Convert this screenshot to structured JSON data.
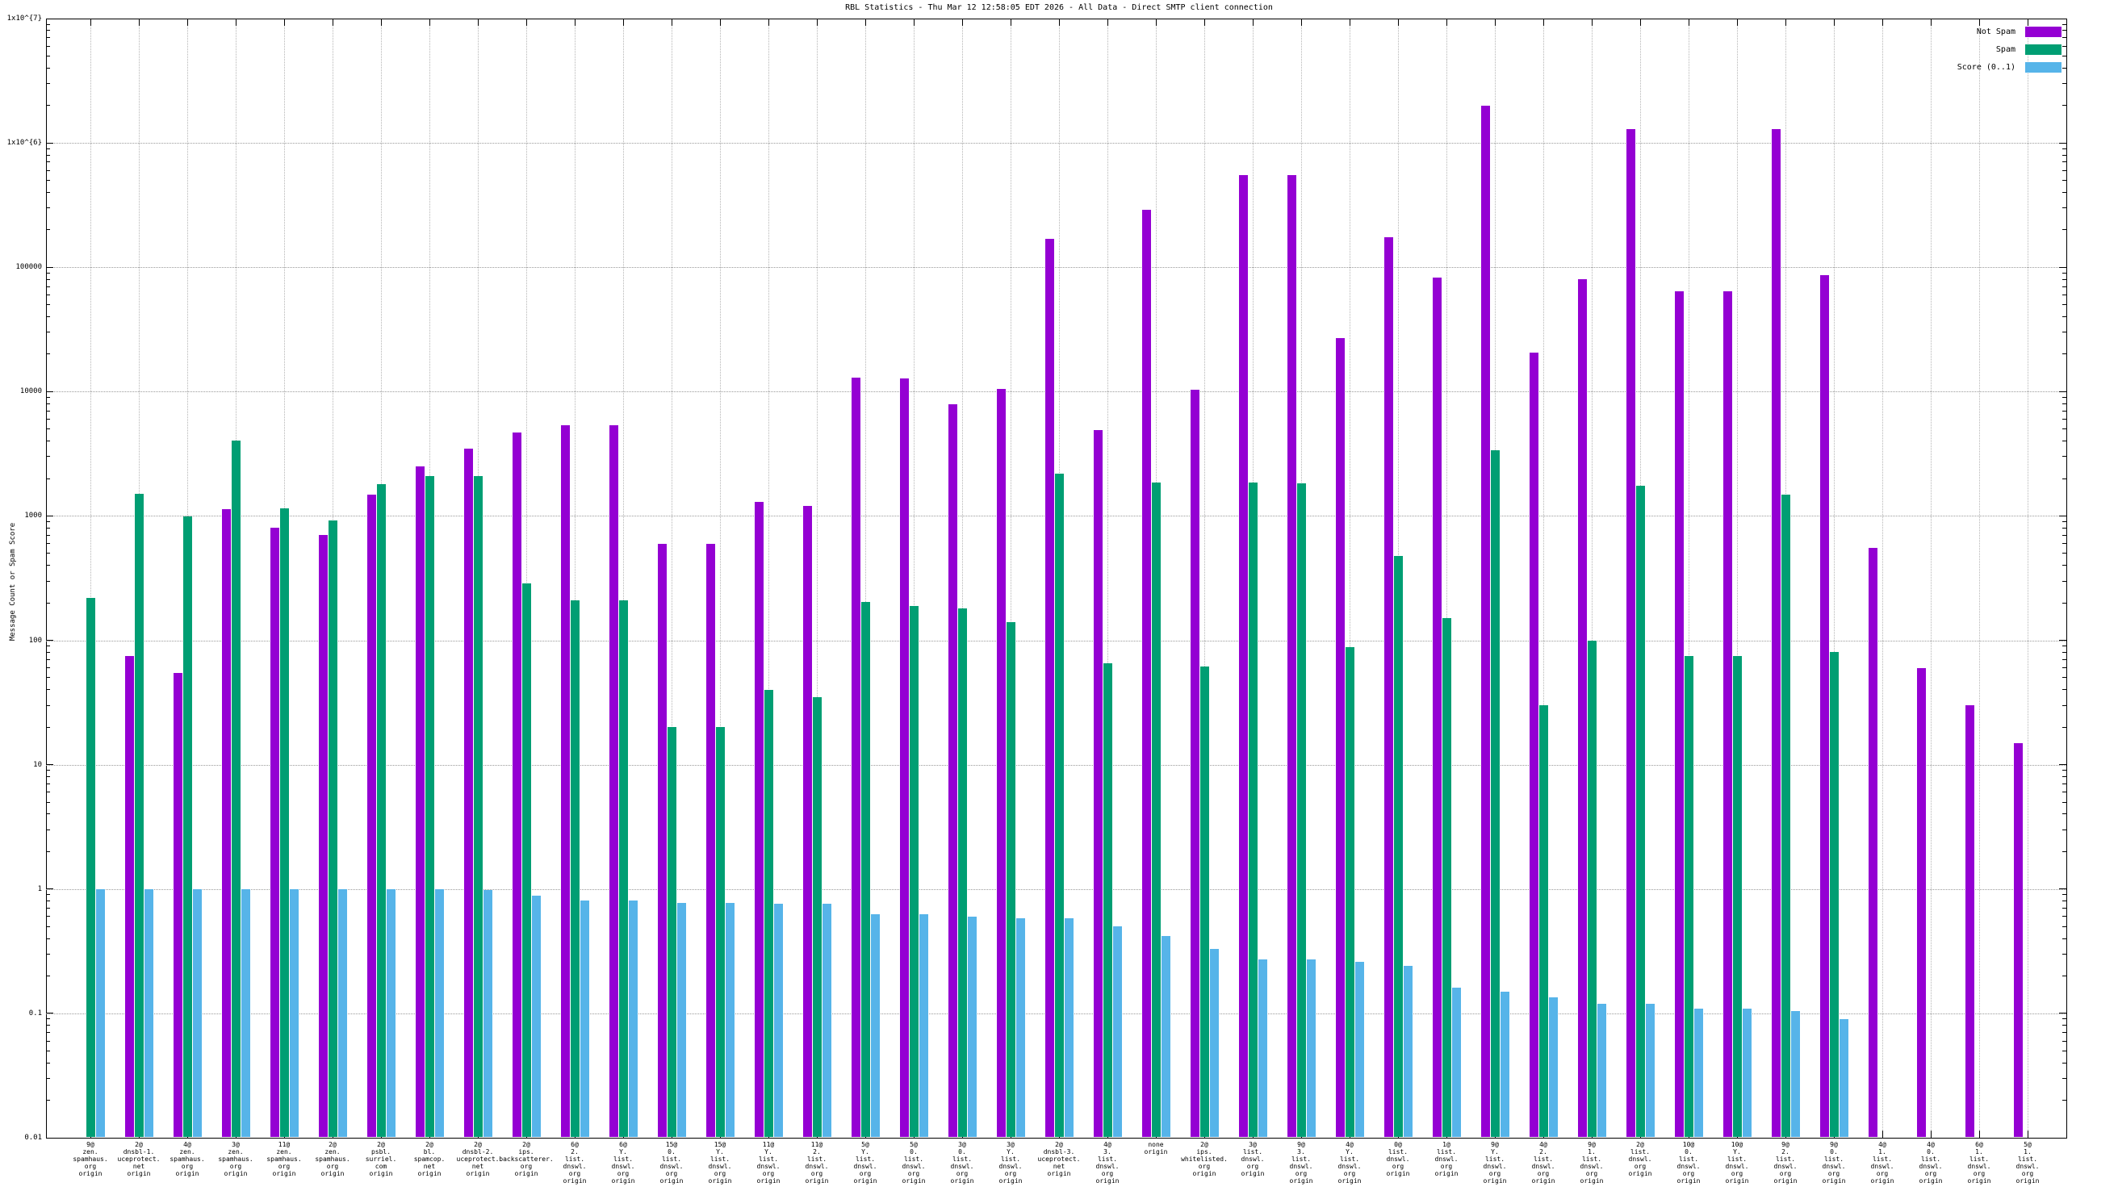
{
  "title": "RBL Statistics - Thu Mar 12 12:58:05 EDT 2026 - All Data - Direct SMTP client connection",
  "ylabel": "Message Count or Spam Score",
  "legend": {
    "position": "top-right-inside",
    "items": [
      {
        "label": "Not Spam",
        "color": "#9400d3"
      },
      {
        "label": "Spam",
        "color": "#009e73"
      },
      {
        "label": "Score (0..1)",
        "color": "#56b4e9"
      }
    ]
  },
  "chart_data": {
    "type": "bar",
    "y_scale": "log",
    "ylim": [
      0.01,
      10000000
    ],
    "grid": true,
    "y_ticks": [
      {
        "label": "1x10^{7}",
        "value": 10000000
      },
      {
        "label": "1x10^{6}",
        "value": 1000000
      },
      {
        "label": "100000",
        "value": 100000
      },
      {
        "label": "10000",
        "value": 10000
      },
      {
        "label": "1000",
        "value": 1000
      },
      {
        "label": "100",
        "value": 100
      },
      {
        "label": "10",
        "value": 10
      },
      {
        "label": "1",
        "value": 1
      },
      {
        "label": "0.1",
        "value": 0.1
      },
      {
        "label": "0.01",
        "value": 0.01
      }
    ],
    "categories": [
      [
        "9@",
        "zen.",
        "spamhaus.",
        "org",
        "origin"
      ],
      [
        "2@",
        "dnsbl-1.",
        "uceprotect.",
        "net",
        "origin"
      ],
      [
        "4@",
        "zen.",
        "spamhaus.",
        "org",
        "origin"
      ],
      [
        "3@",
        "zen.",
        "spamhaus.",
        "org",
        "origin"
      ],
      [
        "11@",
        "zen.",
        "spamhaus.",
        "org",
        "origin"
      ],
      [
        "2@",
        "zen.",
        "spamhaus.",
        "org",
        "origin"
      ],
      [
        "2@",
        "psbl.",
        "surriel.",
        "com",
        "origin"
      ],
      [
        "2@",
        "bl.",
        "spamcop.",
        "net",
        "origin"
      ],
      [
        "2@",
        "dnsbl-2.",
        "uceprotect.",
        "net",
        "origin"
      ],
      [
        "2@",
        "ips.",
        "backscatterer.",
        "org",
        "origin"
      ],
      [
        "6@",
        "2.",
        "list.",
        "dnswl.",
        "org",
        "origin"
      ],
      [
        "6@",
        "Y.",
        "list.",
        "dnswl.",
        "org",
        "origin"
      ],
      [
        "15@",
        "0.",
        "list.",
        "dnswl.",
        "org",
        "origin"
      ],
      [
        "15@",
        "Y.",
        "list.",
        "dnswl.",
        "org",
        "origin"
      ],
      [
        "11@",
        "Y.",
        "list.",
        "dnswl.",
        "org",
        "origin"
      ],
      [
        "11@",
        "2.",
        "list.",
        "dnswl.",
        "org",
        "origin"
      ],
      [
        "5@",
        "Y.",
        "list.",
        "dnswl.",
        "org",
        "origin"
      ],
      [
        "5@",
        "0.",
        "list.",
        "dnswl.",
        "org",
        "origin"
      ],
      [
        "3@",
        "0.",
        "list.",
        "dnswl.",
        "org",
        "origin"
      ],
      [
        "3@",
        "Y.",
        "list.",
        "dnswl.",
        "org",
        "origin"
      ],
      [
        "2@",
        "dnsbl-3.",
        "uceprotect.",
        "net",
        "origin"
      ],
      [
        "4@",
        "3.",
        "list.",
        "dnswl.",
        "org",
        "origin"
      ],
      [
        "none",
        "origin"
      ],
      [
        "2@",
        "ips.",
        "whitelisted.",
        "org",
        "origin"
      ],
      [
        "3@",
        "list.",
        "dnswl.",
        "org",
        "origin"
      ],
      [
        "9@",
        "3.",
        "list.",
        "dnswl.",
        "org",
        "origin"
      ],
      [
        "4@",
        "Y.",
        "list.",
        "dnswl.",
        "org",
        "origin"
      ],
      [
        "0@",
        "list.",
        "dnswl.",
        "org",
        "origin"
      ],
      [
        "1@",
        "list.",
        "dnswl.",
        "org",
        "origin"
      ],
      [
        "9@",
        "Y.",
        "list.",
        "dnswl.",
        "org",
        "origin"
      ],
      [
        "4@",
        "2.",
        "list.",
        "dnswl.",
        "org",
        "origin"
      ],
      [
        "9@",
        "1.",
        "list.",
        "dnswl.",
        "org",
        "origin"
      ],
      [
        "2@",
        "list.",
        "dnswl.",
        "org",
        "origin"
      ],
      [
        "10@",
        "0.",
        "list.",
        "dnswl.",
        "org",
        "origin"
      ],
      [
        "10@",
        "Y.",
        "list.",
        "dnswl.",
        "org",
        "origin"
      ],
      [
        "9@",
        "2.",
        "list.",
        "dnswl.",
        "org",
        "origin"
      ],
      [
        "9@",
        "0.",
        "list.",
        "dnswl.",
        "org",
        "origin"
      ],
      [
        "4@",
        "1.",
        "list.",
        "dnswl.",
        "org",
        "origin"
      ],
      [
        "4@",
        "0.",
        "list.",
        "dnswl.",
        "org",
        "origin"
      ],
      [
        "6@",
        "1.",
        "list.",
        "dnswl.",
        "org",
        "origin"
      ],
      [
        "5@",
        "1.",
        "list.",
        "dnswl.",
        "org",
        "origin"
      ]
    ],
    "series": [
      {
        "name": "Not Spam",
        "color": "#9400d3",
        "values": [
          0,
          75,
          55,
          1130,
          800,
          700,
          1480,
          2500,
          3500,
          4700,
          5400,
          5400,
          600,
          600,
          1300,
          1200,
          13000,
          12800,
          7900,
          10500,
          170000,
          4900,
          290000,
          10300,
          550000,
          550000,
          27000,
          175000,
          83000,
          2000000,
          20500,
          80000,
          1300000,
          64000,
          64000,
          1300000,
          87000,
          550,
          60,
          30,
          15
        ]
      },
      {
        "name": "Spam",
        "color": "#009e73",
        "values": [
          220,
          1500,
          990,
          4050,
          1150,
          920,
          1790,
          2100,
          2100,
          285,
          210,
          210,
          20,
          20,
          40,
          35,
          205,
          190,
          180,
          140,
          2200,
          65,
          1850,
          62,
          1850,
          1820,
          88,
          480,
          150,
          3400,
          30,
          100,
          1750,
          75,
          75,
          1480,
          80,
          0,
          0,
          0,
          0
        ]
      },
      {
        "name": "Score (0..1)",
        "color": "#56b4e9",
        "values": [
          1.0,
          1.0,
          1.0,
          1.0,
          1.0,
          1.0,
          1.0,
          1.0,
          0.98,
          0.89,
          0.81,
          0.81,
          0.77,
          0.77,
          0.76,
          0.76,
          0.63,
          0.63,
          0.6,
          0.58,
          0.58,
          0.5,
          0.42,
          0.33,
          0.27,
          0.27,
          0.26,
          0.24,
          0.16,
          0.15,
          0.135,
          0.12,
          0.12,
          0.11,
          0.11,
          0.105,
          0.09,
          0,
          0,
          0,
          0
        ]
      }
    ]
  }
}
